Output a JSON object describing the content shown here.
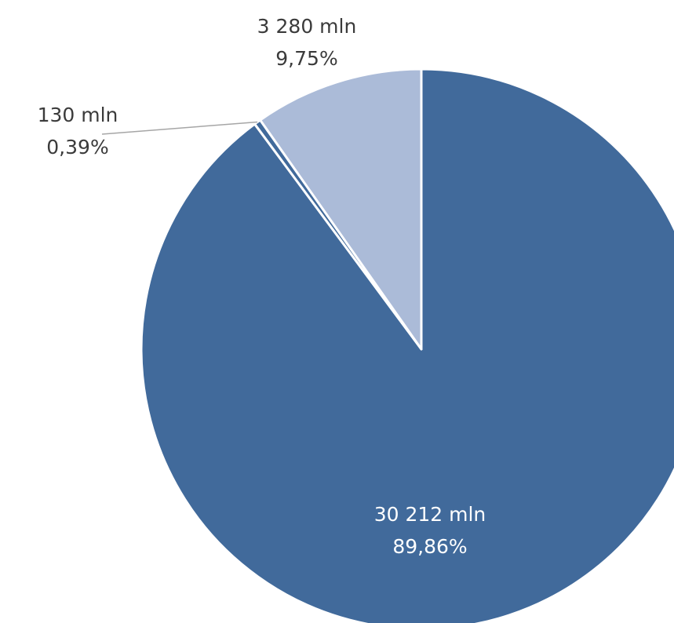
{
  "chart_data": {
    "type": "pie",
    "slices": [
      {
        "value": 30212,
        "value_label": "30 212 mln",
        "percent_label": "89,86%",
        "color": "#416a9b"
      },
      {
        "value": 130,
        "value_label": "130 mln",
        "percent_label": "0,39%",
        "color": "#416a9b"
      },
      {
        "value": 3280,
        "value_label": "3 280 mln",
        "percent_label": "9,75%",
        "color": "#abbbd8"
      }
    ],
    "start_angle": "top",
    "direction": "clockwise",
    "legend": "none",
    "title": ""
  }
}
